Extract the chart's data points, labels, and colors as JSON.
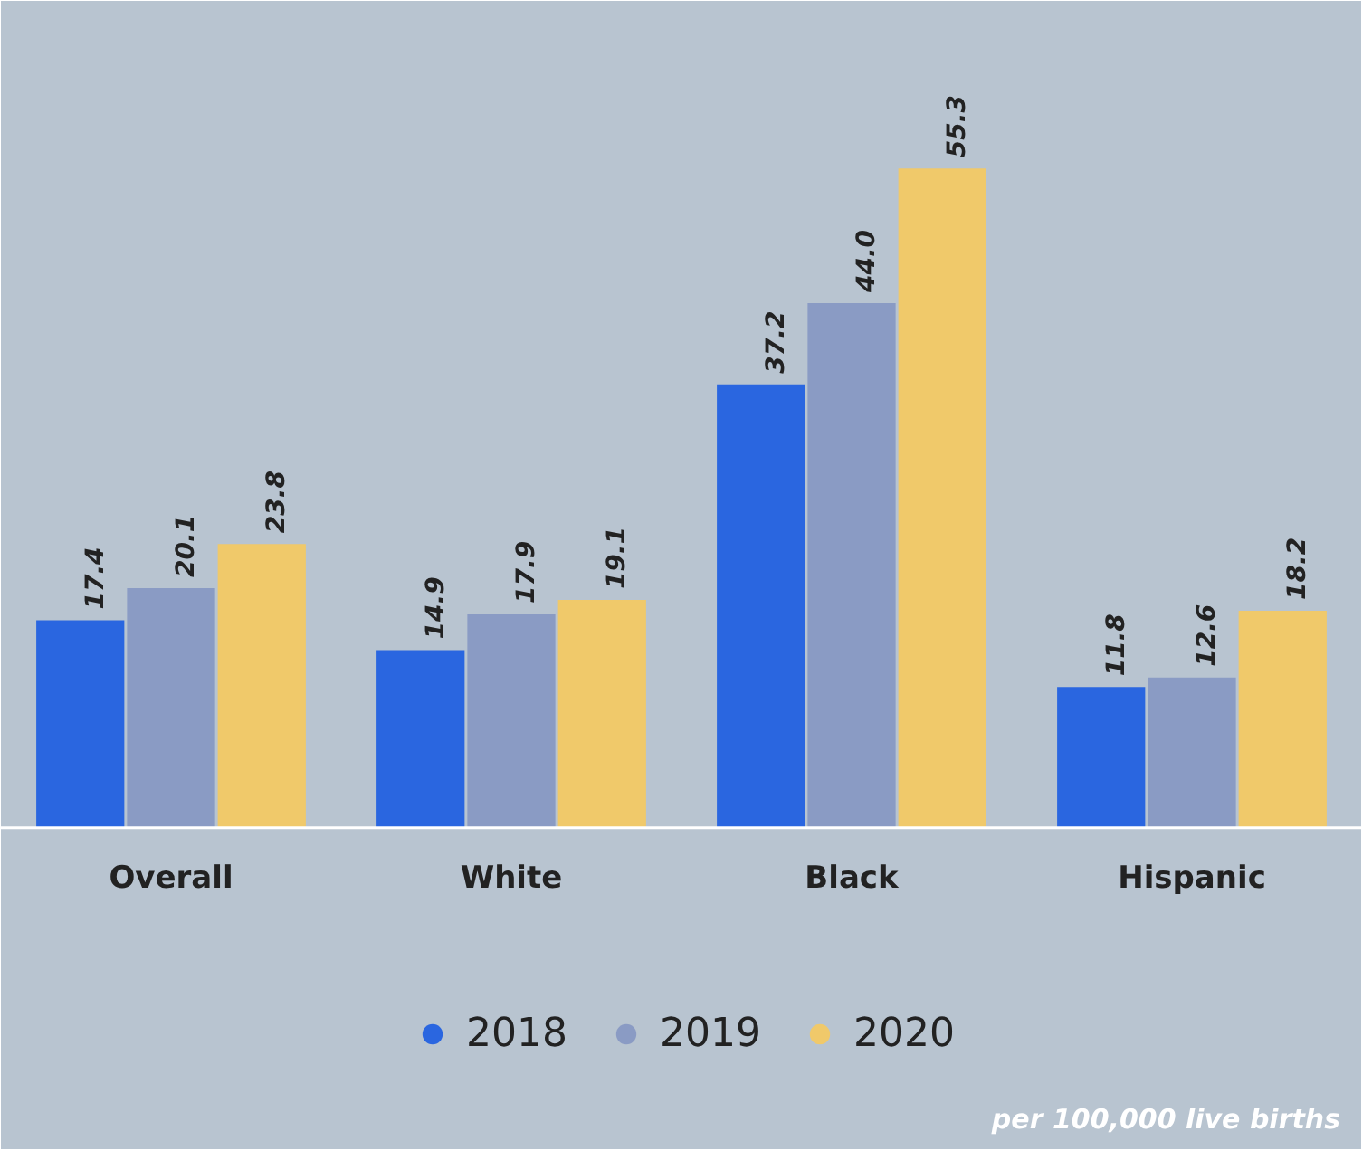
{
  "chart_data": {
    "type": "bar",
    "categories": [
      "Overall",
      "White",
      "Black",
      "Hispanic"
    ],
    "series": [
      {
        "name": "2018",
        "color": "#2a66e0",
        "values": [
          17.4,
          14.9,
          37.2,
          11.8
        ],
        "value_labels": [
          "17.4",
          "14.9",
          "37.2",
          "11.8"
        ]
      },
      {
        "name": "2019",
        "color": "#8a9bc4",
        "values": [
          20.1,
          17.9,
          44.0,
          12.6
        ],
        "value_labels": [
          "20.1",
          "17.9",
          "44.0",
          "12.6"
        ]
      },
      {
        "name": "2020",
        "color": "#f0c96a",
        "values": [
          23.8,
          19.1,
          55.3,
          18.2
        ],
        "value_labels": [
          "23.8",
          "19.1",
          "55.3",
          "18.2"
        ]
      }
    ],
    "legend": "bottom",
    "annotations": [
      "per 100,000 live births"
    ]
  }
}
